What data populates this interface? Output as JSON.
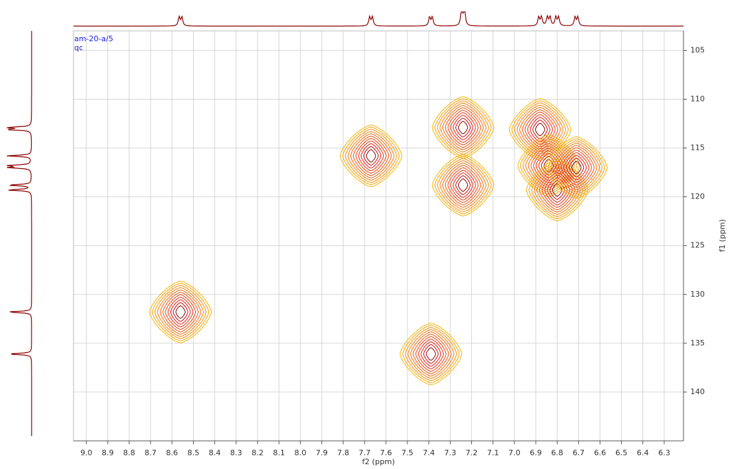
{
  "chart_data": {
    "type": "contour",
    "labels": [
      "am-20-a/5",
      "qc"
    ],
    "xlabel": "f2 (ppm)",
    "ylabel": "f1 (ppm)",
    "xlim": [
      9.06,
      6.21
    ],
    "ylim": [
      103,
      145
    ],
    "xticks": [
      {
        "value": 9.0,
        "label": "9.0"
      },
      8.9,
      8.8,
      8.7,
      8.6,
      8.5,
      8.4,
      8.3,
      8.2,
      8.1,
      {
        "value": 8.0,
        "label": "8.0"
      },
      7.9,
      7.8,
      7.7,
      7.6,
      7.5,
      7.4,
      7.3,
      7.2,
      7.1,
      {
        "value": 7.0,
        "label": "7.0"
      },
      6.9,
      6.8,
      6.7,
      6.6,
      6.5,
      6.4,
      6.3
    ],
    "yticks": [
      105,
      110,
      115,
      120,
      125,
      130,
      135,
      140
    ],
    "grid": true,
    "colors": [
      "#f2b400",
      "#e01010",
      "#8a0000"
    ],
    "peaks": [
      {
        "x": 8.56,
        "y": 131.8
      },
      {
        "x": 7.67,
        "y": 115.8
      },
      {
        "x": 7.24,
        "y": 118.8
      },
      {
        "x": 7.24,
        "y": 112.9
      },
      {
        "x": 7.39,
        "y": 136.1
      },
      {
        "x": 6.88,
        "y": 113.1
      },
      {
        "x": 6.84,
        "y": 116.8
      },
      {
        "x": 6.8,
        "y": 119.3
      },
      {
        "x": 6.71,
        "y": 117.0
      }
    ]
  }
}
